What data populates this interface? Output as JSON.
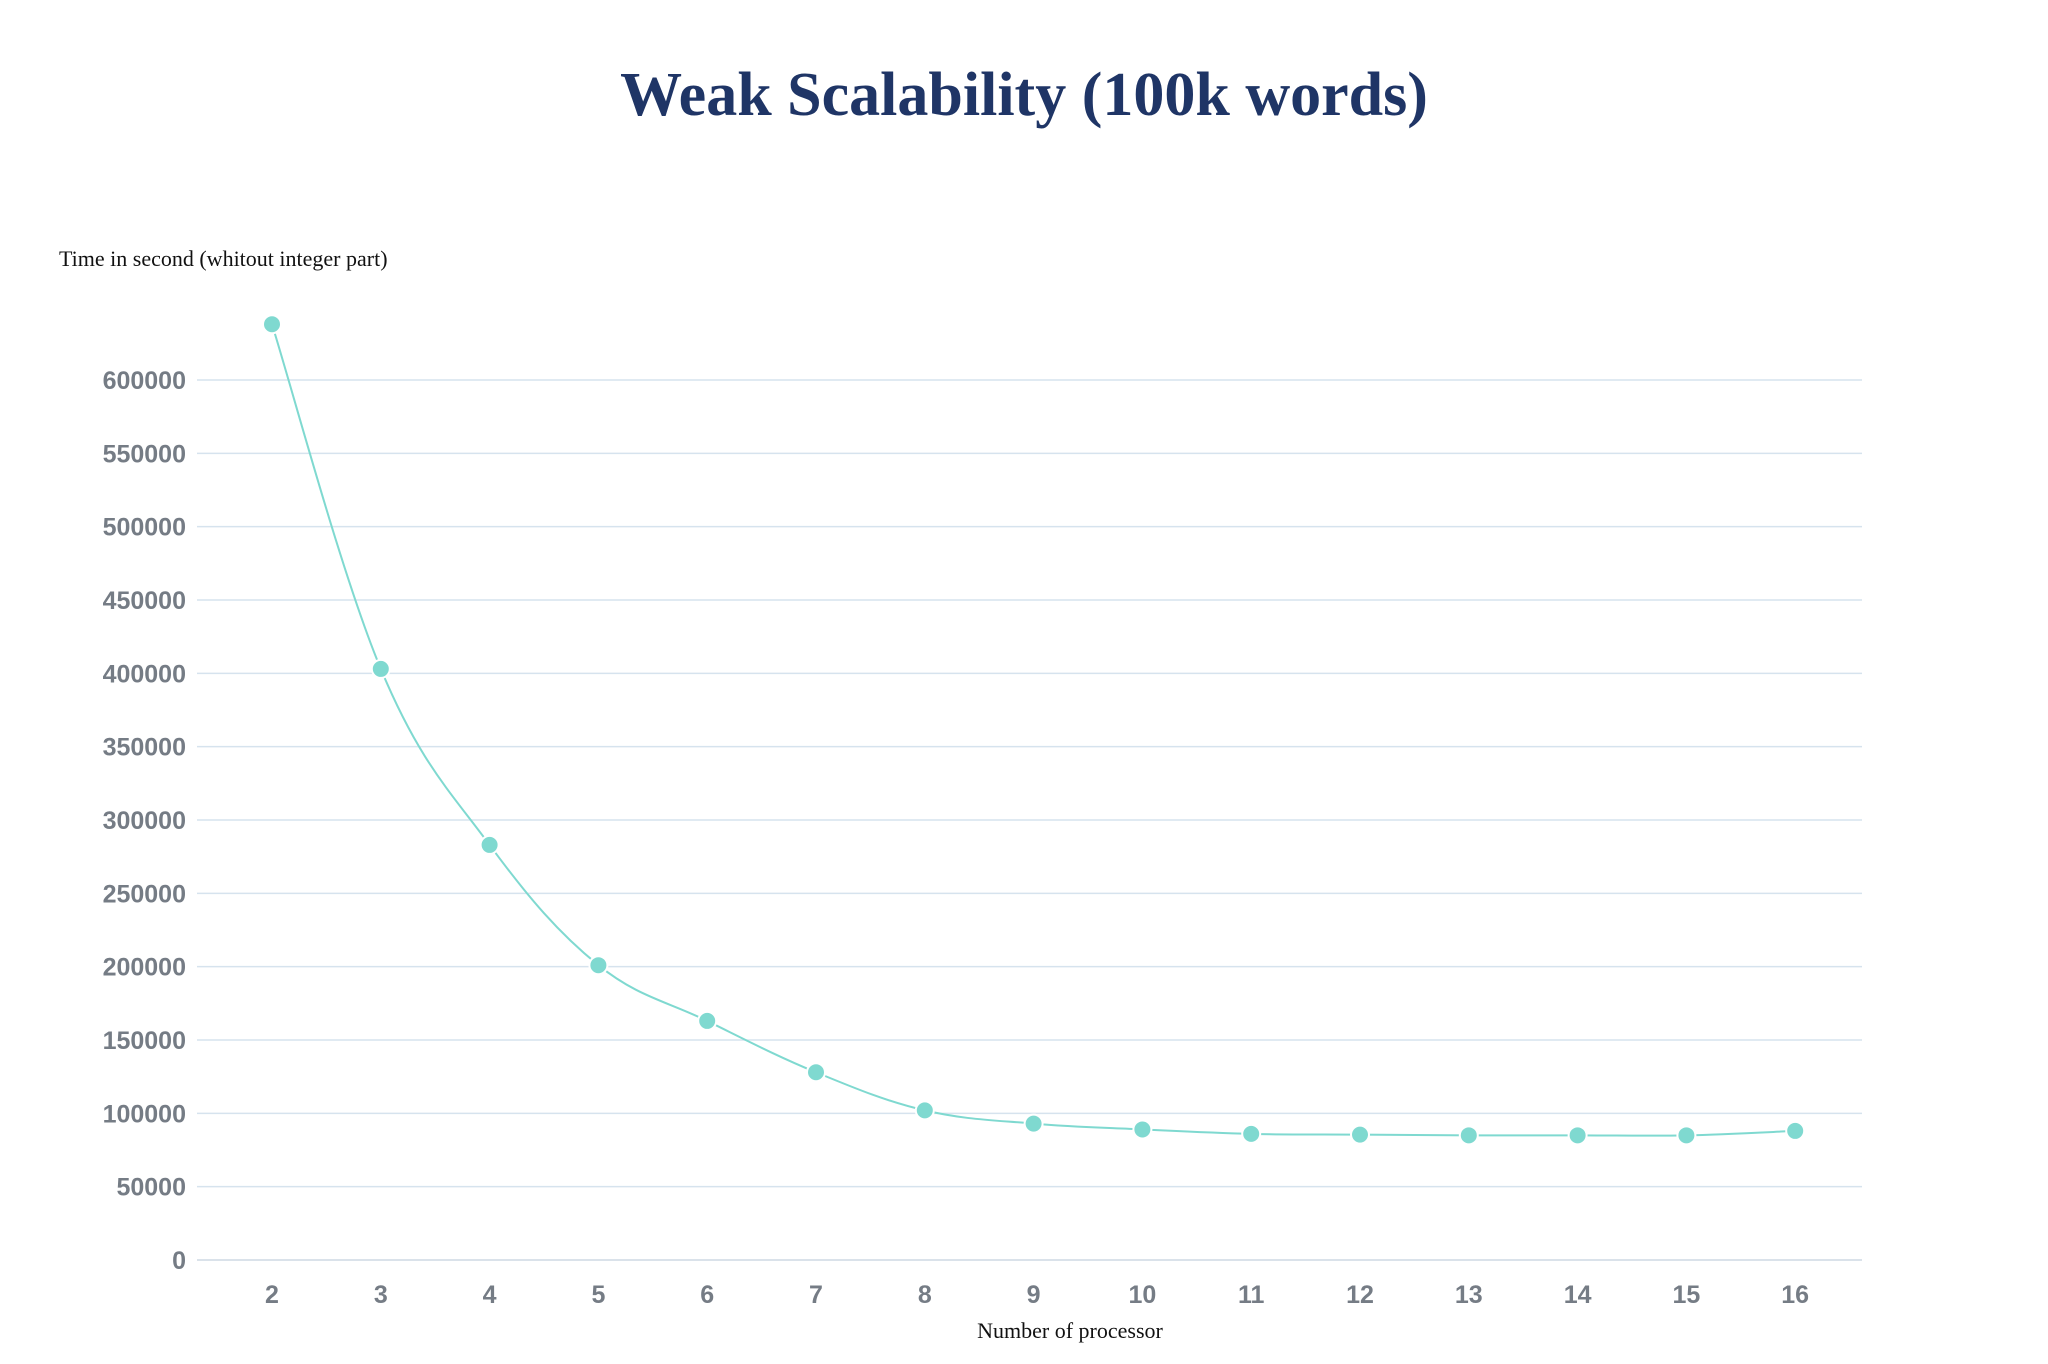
{
  "chart_data": {
    "type": "line",
    "title": "Weak Scalability (100k words)",
    "xlabel": "Number of processor",
    "ylabel": "Time in second (whitout integer part)",
    "x": [
      2,
      3,
      4,
      5,
      6,
      7,
      8,
      9,
      10,
      11,
      12,
      13,
      14,
      15,
      16
    ],
    "series": [
      {
        "values": [
          638000,
          403000,
          283000,
          201000,
          163000,
          128000,
          102000,
          93000,
          89000,
          86000,
          85500,
          85000,
          85000,
          85000,
          88000
        ]
      }
    ],
    "yticks": [
      "0",
      "50000",
      "100000",
      "150000",
      "200000",
      "250000",
      "300000",
      "350000",
      "400000",
      "450000",
      "500000",
      "550000",
      "600000"
    ],
    "ylim": [
      0,
      600000
    ],
    "grid": true,
    "legend": "none",
    "colors": {
      "title": "#1f3566",
      "series": "#7fd9d0",
      "grid": "#d6e3ee",
      "tick_label": "#757c85"
    }
  }
}
